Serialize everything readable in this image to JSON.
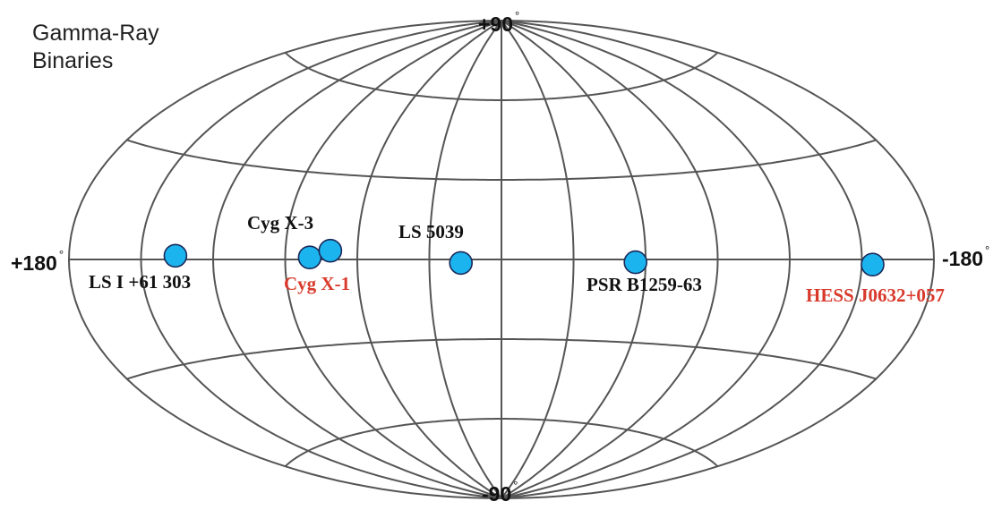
{
  "title_lines": [
    "Gamma-Ray",
    "Binaries"
  ],
  "axis_labels": {
    "top": {
      "text": "+90",
      "unit": "°"
    },
    "bottom": {
      "text": "-90",
      "unit": "°"
    },
    "left": {
      "text": "+180",
      "unit": "°"
    },
    "right": {
      "text": "-180",
      "unit": "°"
    }
  },
  "projection": "aitoff-galactic",
  "grid": {
    "meridian_step_deg": 30,
    "parallel_step_deg": 30
  },
  "colors": {
    "grid": "#555555",
    "marker_fill": "#1cb4ee",
    "marker_stroke": "#1a2a5a",
    "label_default": "#111111",
    "label_highlight": "#d8392b"
  },
  "sources": [
    {
      "name": "LS I +61 303",
      "lon": 135.7,
      "lat": 1.1,
      "highlight": false
    },
    {
      "name": "Cyg X-3",
      "lon": 79.8,
      "lat": 0.7,
      "highlight": false
    },
    {
      "name": "Cyg X-1",
      "lon": 71.3,
      "lat": 3.1,
      "highlight": true
    },
    {
      "name": "LS 5039",
      "lon": 16.9,
      "lat": -1.3,
      "highlight": false
    },
    {
      "name": "PSR B1259-63",
      "lon": -55.8,
      "lat": -1.0,
      "highlight": false
    },
    {
      "name": "HESS J0632+057",
      "lon": -154.5,
      "lat": -1.4,
      "highlight": true
    }
  ]
}
